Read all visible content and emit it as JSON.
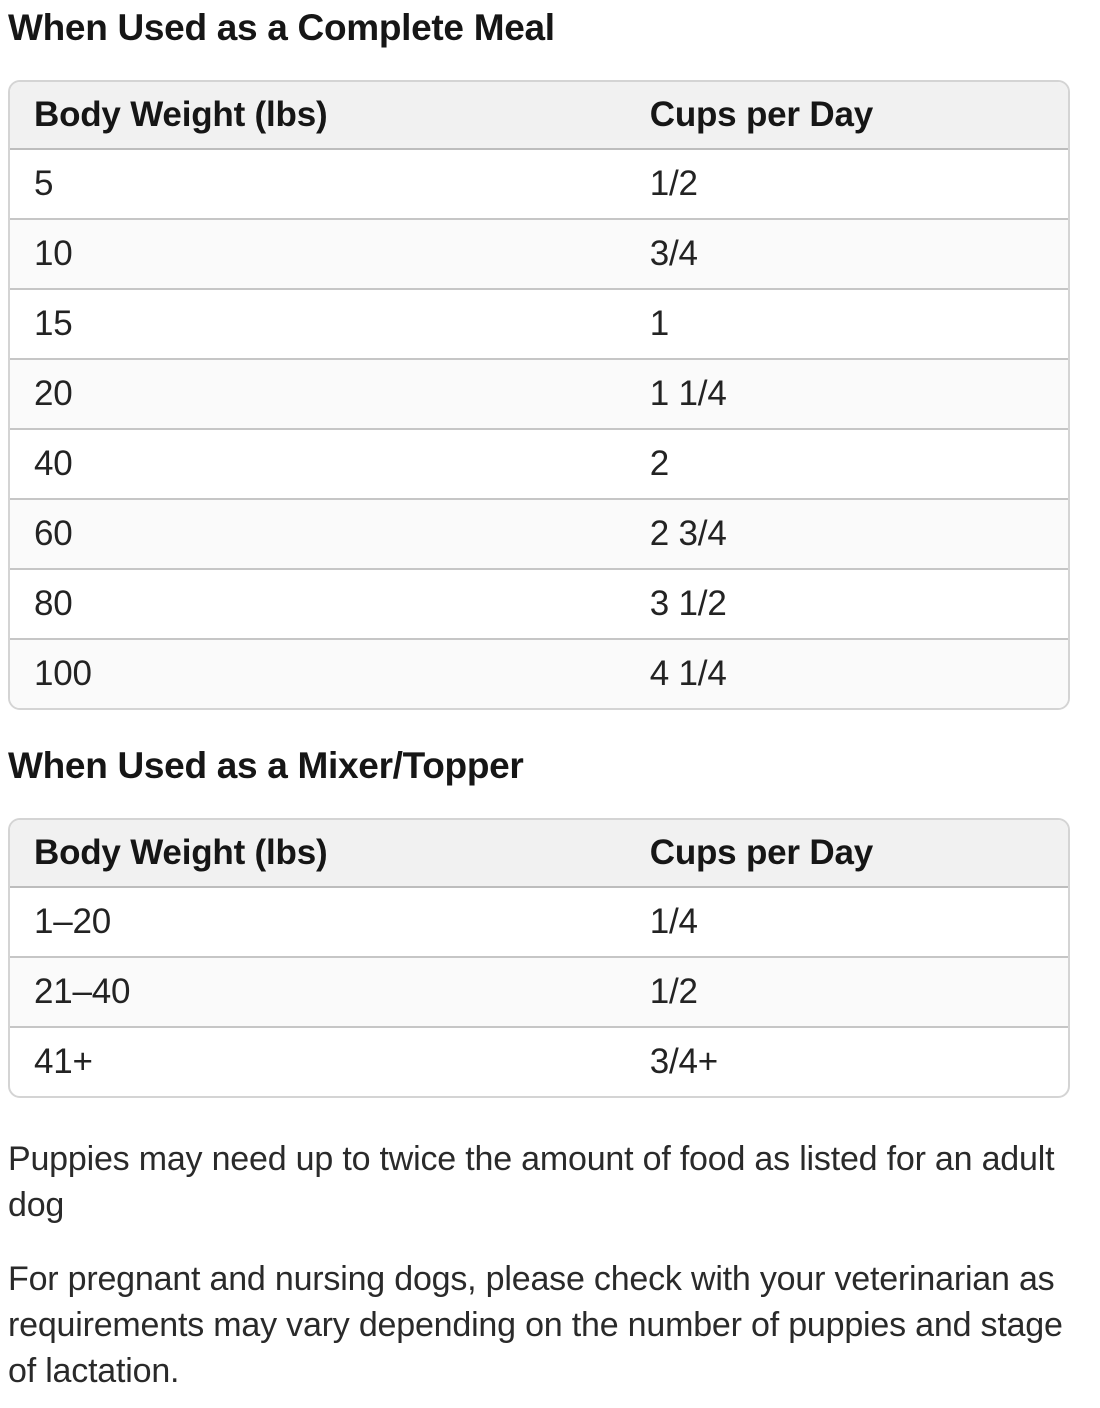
{
  "colors": {
    "header_bg": "#f1f1f1",
    "alt_row_bg": "#fafafa",
    "outer_border": "#d4d4d4",
    "row_divider": "#c6c6c6",
    "header_divider": "#bdbdbd",
    "heading_text": "#161616",
    "body_text": "#2a2a2a"
  },
  "sections": [
    {
      "title": "When Used as a Complete Meal",
      "columns": [
        "Body Weight (lbs)",
        "Cups per Day"
      ],
      "rows": [
        [
          "5",
          "1/2"
        ],
        [
          "10",
          "3/4"
        ],
        [
          "15",
          "1"
        ],
        [
          "20",
          "1 1/4"
        ],
        [
          "40",
          "2"
        ],
        [
          "60",
          "2 3/4"
        ],
        [
          "80",
          "3 1/2"
        ],
        [
          "100",
          "4 1/4"
        ]
      ]
    },
    {
      "title": "When Used as a Mixer/Topper",
      "columns": [
        "Body Weight (lbs)",
        "Cups per Day"
      ],
      "rows": [
        [
          "1–20",
          "1/4"
        ],
        [
          "21–40",
          "1/2"
        ],
        [
          "41+",
          "3/4+"
        ]
      ]
    }
  ],
  "notes": [
    "Puppies may need up to twice the amount of food as listed for an adult dog",
    "For pregnant and nursing dogs, please check with your veterinarian as requirements may vary depending on the number of puppies and stage of lactation."
  ]
}
